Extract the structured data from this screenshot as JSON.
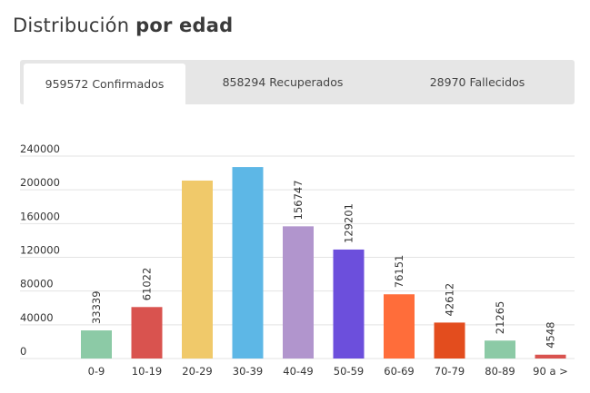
{
  "title": {
    "prefix": "Distribución",
    "strong": "por edad"
  },
  "tabs": [
    {
      "label": "959572 Confirmados",
      "active": true
    },
    {
      "label": "858294 Recuperados",
      "active": false
    },
    {
      "label": "28970 Fallecidos",
      "active": false
    }
  ],
  "chart_data": {
    "type": "bar",
    "categories": [
      "0-9",
      "10-19",
      "20-29",
      "30-39",
      "40-49",
      "50-59",
      "60-69",
      "70-79",
      "80-89",
      "90 a >"
    ],
    "values": [
      33339,
      61022,
      211000,
      227000,
      156747,
      129201,
      76151,
      42612,
      21265,
      4548
    ],
    "data_labels": [
      "33339",
      "61022",
      "",
      "",
      "156747",
      "129201",
      "76151",
      "42612",
      "21265",
      "4548"
    ],
    "colors": [
      "#8ccaa6",
      "#d9534f",
      "#f0c96a",
      "#5db7e6",
      "#b195cd",
      "#6c4fdc",
      "#ff6d3a",
      "#e34d1e",
      "#8ccaa6",
      "#d9534f"
    ],
    "yticks": [
      0,
      40000,
      80000,
      120000,
      160000,
      200000,
      240000
    ],
    "ytick_labels": [
      "0",
      "40000",
      "80000",
      "120000",
      "160000",
      "200000",
      "240000"
    ],
    "ylim": [
      0,
      240000
    ],
    "grid": true,
    "title": "",
    "xlabel": "",
    "ylabel": ""
  }
}
